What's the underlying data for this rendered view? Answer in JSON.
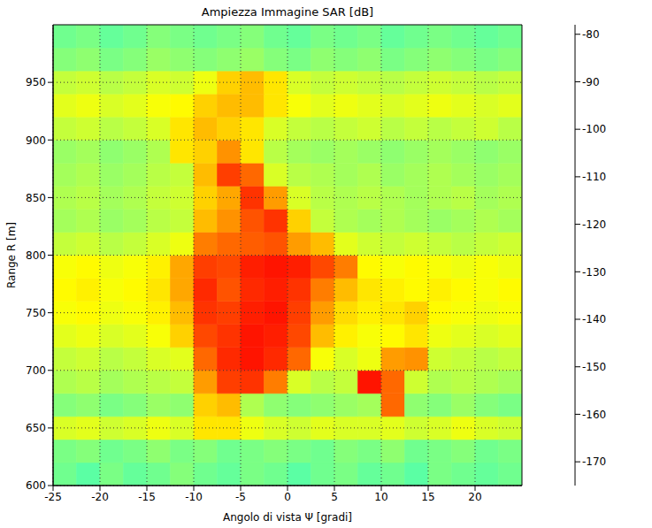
{
  "chart_data": {
    "type": "heatmap",
    "title": "Ampiezza Immagine SAR [dB]",
    "x_label": "Angolo di vista Ψ [gradi]",
    "y_label": "Range R [m]",
    "xlim": [
      -25,
      25
    ],
    "ylim": [
      600,
      1000
    ],
    "xticks": [
      -25,
      -20,
      -15,
      -10,
      -5,
      0,
      5,
      10,
      15,
      20
    ],
    "yticks": [
      600,
      650,
      700,
      750,
      800,
      850,
      900,
      950
    ],
    "grid": true,
    "x_edges": [
      -25,
      -22.5,
      -20,
      -17.5,
      -15,
      -12.5,
      -10,
      -7.5,
      -5,
      -2.5,
      0,
      2.5,
      5,
      7.5,
      10,
      12.5,
      15,
      17.5,
      20,
      22.5,
      25
    ],
    "y_edges": [
      600,
      620,
      640,
      660,
      680,
      700,
      720,
      740,
      760,
      780,
      800,
      820,
      840,
      860,
      880,
      900,
      920,
      940,
      960,
      980,
      1000
    ],
    "z": [
      [
        -128,
        -130,
        -127,
        -129,
        -128,
        -126,
        -128,
        -129,
        -127,
        -128,
        -130,
        -128,
        -127,
        -129,
        -128,
        -130,
        -127,
        -128,
        -129,
        -128
      ],
      [
        -127,
        -126,
        -128,
        -127,
        -125,
        -127,
        -126,
        -128,
        -127,
        -126,
        -127,
        -128,
        -126,
        -127,
        -125,
        -128,
        -127,
        -126,
        -128,
        -127
      ],
      [
        -118,
        -117,
        -119,
        -118,
        -116,
        -118,
        -112,
        -112,
        -116,
        -118,
        -119,
        -117,
        -118,
        -118,
        -117,
        -119,
        -118,
        -116,
        -118,
        -119
      ],
      [
        -126,
        -125,
        -127,
        -126,
        -124,
        -125,
        -110,
        -108,
        -122,
        -125,
        -126,
        -125,
        -124,
        -123,
        -100,
        -125,
        -126,
        -124,
        -126,
        -127
      ],
      [
        -122,
        -121,
        -123,
        -122,
        -121,
        -120,
        -105,
        -96,
        -95,
        -102,
        -118,
        -121,
        -120,
        -92,
        -100,
        -119,
        -122,
        -121,
        -122,
        -123
      ],
      [
        -120,
        -119,
        -121,
        -120,
        -118,
        -117,
        -100,
        -94,
        -92,
        -94,
        -100,
        -115,
        -118,
        -116,
        -105,
        -104,
        -119,
        -120,
        -121,
        -120
      ],
      [
        -117,
        -116,
        -118,
        -117,
        -115,
        -110,
        -97,
        -95,
        -92,
        -93,
        -97,
        -108,
        -113,
        -115,
        -114,
        -112,
        -116,
        -117,
        -118,
        -117
      ],
      [
        -115,
        -114,
        -116,
        -115,
        -113,
        -108,
        -95,
        -96,
        -93,
        -92,
        -96,
        -105,
        -111,
        -113,
        -112,
        -110,
        -114,
        -115,
        -116,
        -115
      ],
      [
        -114,
        -113,
        -115,
        -114,
        -112,
        -106,
        -94,
        -98,
        -94,
        -93,
        -95,
        -102,
        -108,
        -112,
        -113,
        -114,
        -113,
        -114,
        -115,
        -114
      ],
      [
        -115,
        -114,
        -116,
        -115,
        -113,
        -106,
        -96,
        -97,
        -93,
        -92,
        -93,
        -97,
        -102,
        -114,
        -115,
        -114,
        -115,
        -116,
        -115,
        -116
      ],
      [
        -120,
        -119,
        -121,
        -120,
        -118,
        -116,
        -102,
        -100,
        -99,
        -98,
        -105,
        -108,
        -117,
        -119,
        -120,
        -119,
        -120,
        -121,
        -120,
        -119
      ],
      [
        -123,
        -122,
        -124,
        -123,
        -121,
        -120,
        -108,
        -104,
        -98,
        -95,
        -110,
        -120,
        -122,
        -123,
        -122,
        -123,
        -124,
        -123,
        -122,
        -123
      ],
      [
        -122,
        -121,
        -123,
        -122,
        -120,
        -119,
        -110,
        -106,
        -95,
        -105,
        -118,
        -121,
        -122,
        -121,
        -122,
        -123,
        -122,
        -121,
        -123,
        -122
      ],
      [
        -123,
        -122,
        -124,
        -123,
        -121,
        -120,
        -108,
        -96,
        -100,
        -118,
        -121,
        -122,
        -123,
        -122,
        -124,
        -123,
        -122,
        -123,
        -124,
        -123
      ],
      [
        -124,
        -123,
        -125,
        -124,
        -122,
        -112,
        -110,
        -104,
        -112,
        -121,
        -123,
        -124,
        -123,
        -124,
        -125,
        -124,
        -123,
        -124,
        -125,
        -124
      ],
      [
        -120,
        -119,
        -121,
        -120,
        -118,
        -112,
        -108,
        -110,
        -112,
        -118,
        -120,
        -121,
        -120,
        -119,
        -121,
        -120,
        -121,
        -120,
        -119,
        -121
      ],
      [
        -117,
        -116,
        -118,
        -117,
        -115,
        -114,
        -110,
        -108,
        -108,
        -112,
        -115,
        -117,
        -116,
        -117,
        -118,
        -117,
        -116,
        -117,
        -118,
        -117
      ],
      [
        -120,
        -119,
        -121,
        -120,
        -118,
        -119,
        -116,
        -110,
        -108,
        -112,
        -118,
        -120,
        -119,
        -120,
        -121,
        -120,
        -119,
        -120,
        -121,
        -120
      ],
      [
        -126,
        -125,
        -127,
        -126,
        -124,
        -125,
        -126,
        -125,
        -124,
        -126,
        -127,
        -125,
        -126,
        -125,
        -127,
        -126,
        -125,
        -126,
        -127,
        -126
      ],
      [
        -128,
        -127,
        -129,
        -128,
        -126,
        -127,
        -128,
        -127,
        -126,
        -128,
        -129,
        -127,
        -128,
        -127,
        -129,
        -128,
        -127,
        -128,
        -129,
        -128
      ]
    ],
    "colorbar": {
      "range": [
        -175,
        -78
      ],
      "ticks": [
        -170,
        -160,
        -150,
        -140,
        -130,
        -120,
        -110,
        -100,
        -90,
        -80
      ]
    }
  }
}
